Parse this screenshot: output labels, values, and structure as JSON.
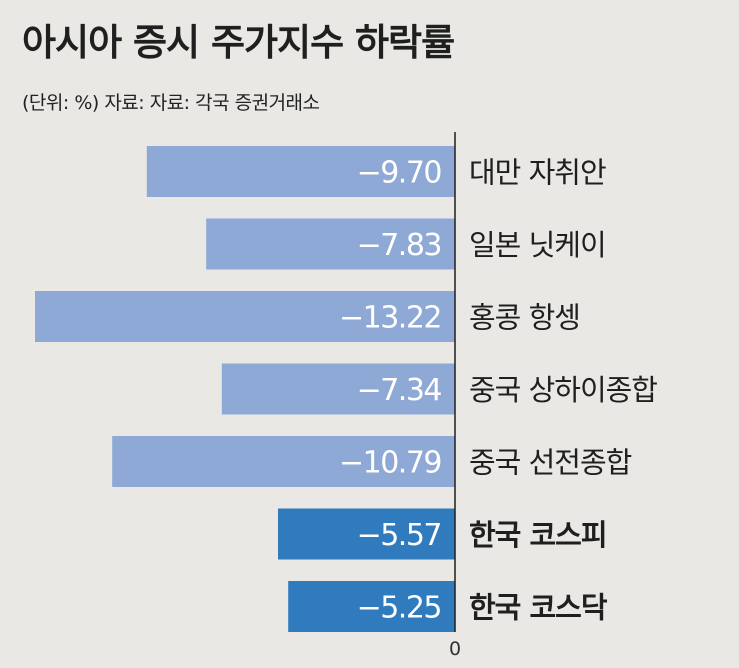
{
  "title": "아시아 증시 주가지수 하락률",
  "subtitle": "(단위: %)  자료: 자료: 각국 증권거래소",
  "colors": {
    "background": "#e9e8e4",
    "bar_color": "#8ea9d6",
    "highlight_color": "#2f7bbd",
    "axis": "#1f1f1f"
  },
  "chart_data": {
    "type": "bar",
    "orientation": "horizontal",
    "title": "아시아 증시 주가지수 하락률",
    "unit": "%",
    "categories": [
      "대만 자취안",
      "일본 닛케이",
      "홍콩 항셍",
      "중국 상하이종합",
      "중국 선전종합",
      "한국 코스피",
      "한국 코스닥"
    ],
    "values": [
      -9.7,
      -7.83,
      -13.22,
      -7.34,
      -10.79,
      -5.57,
      -5.25
    ],
    "value_labels": [
      "−9.70",
      "−7.83",
      "−13.22",
      "−7.34",
      "−10.79",
      "−5.57",
      "−5.25"
    ],
    "highlighted": [
      false,
      false,
      false,
      false,
      false,
      true,
      true
    ],
    "xlim": [
      -13.22,
      0
    ],
    "zero_label": "0",
    "grid": false,
    "legend": "none"
  }
}
